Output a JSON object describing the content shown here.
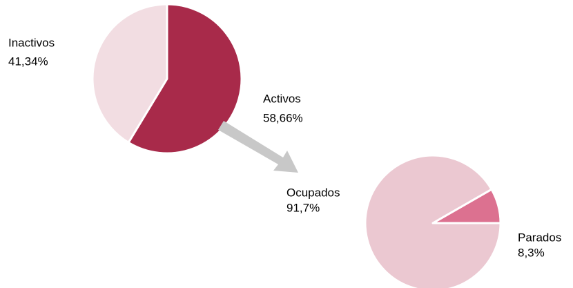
{
  "chart_data": [
    {
      "type": "pie",
      "categories": [
        "Activos",
        "Inactivos"
      ],
      "values": [
        58.66,
        41.34
      ],
      "value_labels": [
        "58,66%",
        "41,34%"
      ],
      "colors": [
        "#a82a4a",
        "#f2dde2"
      ]
    },
    {
      "type": "pie",
      "categories": [
        "Parados",
        "Ocupados"
      ],
      "values": [
        8.3,
        91.7
      ],
      "value_labels": [
        "8,3%",
        "91,7%"
      ],
      "colors": [
        "#dc7190",
        "#ebc8d1"
      ]
    }
  ]
}
